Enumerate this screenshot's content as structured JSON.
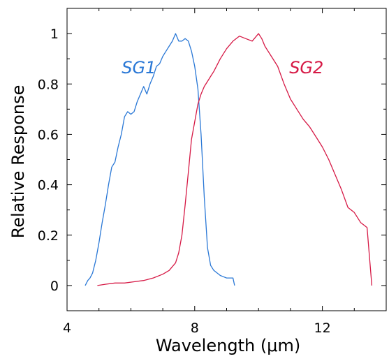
{
  "chart_data": {
    "type": "line",
    "title": "",
    "xlabel": "Wavelength (μm)",
    "ylabel": "Relative Response",
    "xlim": [
      4,
      14
    ],
    "ylim": [
      -0.1,
      1.1
    ],
    "xticks": [
      4,
      8,
      12
    ],
    "xtick_labels": [
      "4",
      "8",
      "12"
    ],
    "yticks": [
      0,
      0.2,
      0.4,
      0.6,
      0.8,
      1
    ],
    "ytick_labels": [
      "0",
      "0.2",
      "0.4",
      "0.6",
      "0.8",
      "1"
    ],
    "grid": false,
    "series": [
      {
        "name": "SG1",
        "color": "#2a78d6",
        "x": [
          4.57,
          4.65,
          4.72,
          4.8,
          4.9,
          5.0,
          5.1,
          5.2,
          5.3,
          5.4,
          5.5,
          5.6,
          5.7,
          5.8,
          5.9,
          6.0,
          6.1,
          6.2,
          6.3,
          6.4,
          6.5,
          6.6,
          6.7,
          6.8,
          6.9,
          7.0,
          7.1,
          7.2,
          7.3,
          7.4,
          7.5,
          7.6,
          7.7,
          7.8,
          7.9,
          8.0,
          8.1,
          8.2,
          8.3,
          8.4,
          8.5,
          8.6,
          8.7,
          8.8,
          8.9,
          9.0,
          9.1,
          9.2,
          9.25
        ],
        "y": [
          0.0,
          0.02,
          0.03,
          0.05,
          0.1,
          0.17,
          0.25,
          0.32,
          0.4,
          0.47,
          0.49,
          0.55,
          0.6,
          0.67,
          0.69,
          0.68,
          0.69,
          0.73,
          0.76,
          0.79,
          0.76,
          0.8,
          0.83,
          0.87,
          0.88,
          0.91,
          0.93,
          0.95,
          0.97,
          1.0,
          0.97,
          0.97,
          0.98,
          0.97,
          0.93,
          0.87,
          0.78,
          0.6,
          0.35,
          0.15,
          0.08,
          0.06,
          0.05,
          0.04,
          0.035,
          0.03,
          0.03,
          0.03,
          0.0
        ]
      },
      {
        "name": "SG2",
        "color": "#d61a46",
        "x": [
          4.95,
          5.2,
          5.5,
          5.8,
          6.1,
          6.4,
          6.7,
          7.0,
          7.2,
          7.4,
          7.5,
          7.6,
          7.7,
          7.8,
          7.9,
          8.0,
          8.1,
          8.2,
          8.3,
          8.4,
          8.5,
          8.6,
          8.8,
          9.0,
          9.2,
          9.4,
          9.6,
          9.8,
          10.0,
          10.1,
          10.2,
          10.4,
          10.6,
          10.8,
          11.0,
          11.2,
          11.4,
          11.6,
          11.8,
          12.0,
          12.2,
          12.4,
          12.6,
          12.8,
          13.0,
          13.2,
          13.3,
          13.4,
          13.55
        ],
        "y": [
          0.0,
          0.005,
          0.01,
          0.01,
          0.015,
          0.02,
          0.03,
          0.045,
          0.06,
          0.09,
          0.13,
          0.2,
          0.32,
          0.45,
          0.58,
          0.65,
          0.72,
          0.76,
          0.79,
          0.81,
          0.83,
          0.85,
          0.9,
          0.94,
          0.97,
          0.99,
          0.98,
          0.97,
          1.0,
          0.98,
          0.95,
          0.91,
          0.87,
          0.8,
          0.74,
          0.7,
          0.66,
          0.63,
          0.59,
          0.55,
          0.5,
          0.44,
          0.38,
          0.31,
          0.29,
          0.25,
          0.24,
          0.23,
          0.0
        ]
      }
    ],
    "annotations": [
      {
        "text": "SG1",
        "series": "SG1",
        "x": 6.25,
        "y": 0.865
      },
      {
        "text": "SG2",
        "series": "SG2",
        "x": 11.5,
        "y": 0.865
      }
    ]
  }
}
